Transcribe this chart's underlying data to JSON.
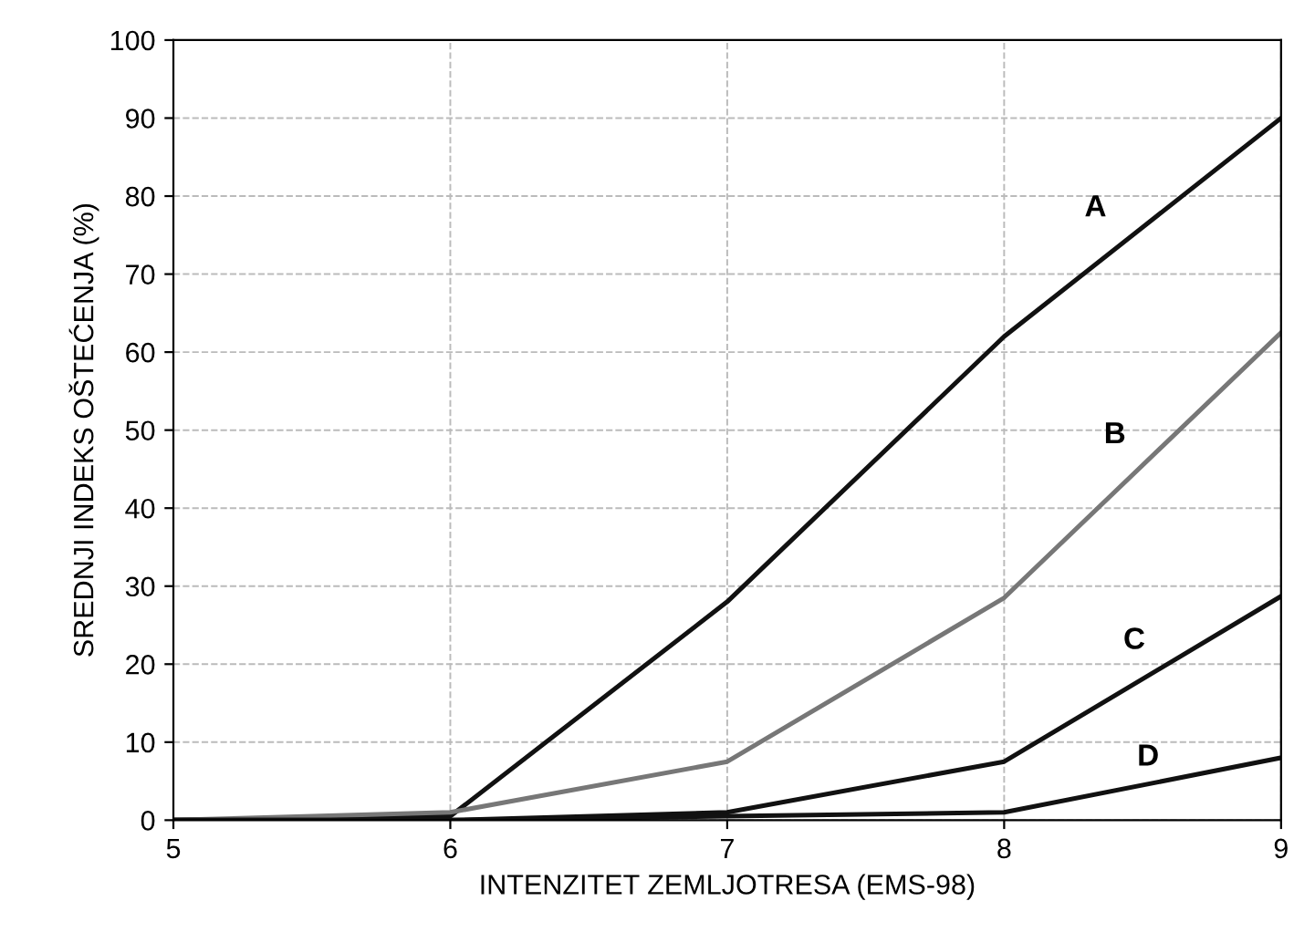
{
  "chart_data": {
    "type": "line",
    "xlabel": "INTENZITET ZEMLJOTRESA (EMS-98)",
    "ylabel": "SREDNJI INDEKS OŠTEĆENJA (%)",
    "x": [
      5,
      6,
      7,
      8,
      9
    ],
    "series": [
      {
        "name": "A",
        "color": "#111111",
        "values": [
          0,
          0.5,
          28,
          62,
          90
        ]
      },
      {
        "name": "B",
        "color": "#777777",
        "values": [
          0,
          1,
          7.5,
          28.5,
          62.5
        ]
      },
      {
        "name": "C",
        "color": "#111111",
        "values": [
          0,
          0,
          1,
          7.5,
          28.7
        ]
      },
      {
        "name": "D",
        "color": "#111111",
        "values": [
          0,
          0,
          0.5,
          1,
          8
        ]
      }
    ],
    "xlim": [
      5,
      9
    ],
    "xticks": [
      5,
      6,
      7,
      8,
      9
    ],
    "ylim": [
      0,
      100
    ],
    "yticks": [
      0,
      10,
      20,
      30,
      40,
      50,
      60,
      70,
      80,
      90,
      100
    ],
    "grid": true,
    "marker": "none",
    "line_style": "solid"
  }
}
